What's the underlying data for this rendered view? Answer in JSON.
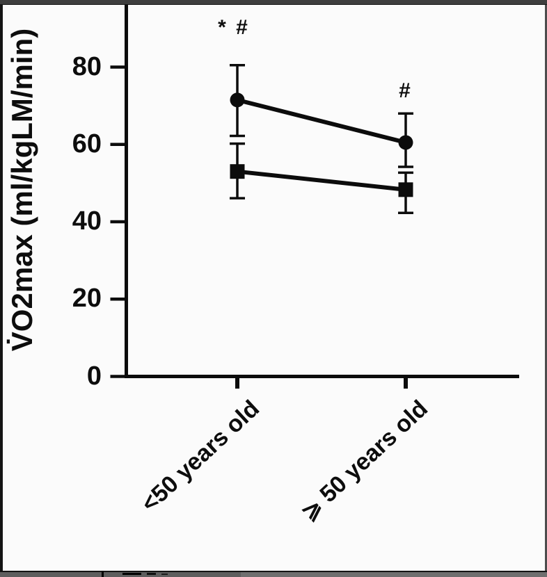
{
  "figure": {
    "kind": "scientific-plot-screenshot",
    "background_color": "#fbfbfb",
    "ink_color": "#0c0c0c",
    "frame_colors": {
      "top_bar": "#3e3e3e",
      "left_strip": "#141414",
      "right_strip": "#4c4c4c",
      "bottom_bar": "#6f6f6f"
    }
  },
  "chart_data": {
    "type": "line",
    "title": "",
    "xlabel": "",
    "ylabel": "V̇O2max (ml/kgLM/min)",
    "categories": [
      "<50 years old",
      "⩾ 50 years old"
    ],
    "y_axis": {
      "ticks": [
        0,
        20,
        40,
        60,
        80
      ],
      "visible_range": [
        0,
        96
      ]
    },
    "grid": false,
    "legend_position": "none",
    "series": [
      {
        "name": "circle-series",
        "marker": "circle",
        "color": "#0c0c0c",
        "values": [
          71.5,
          60.5
        ],
        "err_plus": [
          9.0,
          7.5
        ],
        "err_minus": [
          9.3,
          6.3
        ]
      },
      {
        "name": "square-series",
        "marker": "square",
        "color": "#0c0c0c",
        "values": [
          53.0,
          48.3
        ],
        "err_plus": [
          7.2,
          4.4
        ],
        "err_minus": [
          6.9,
          6.0
        ]
      }
    ],
    "annotations": [
      {
        "text": "* #",
        "category_index": 0,
        "value": 90.2,
        "dx": -5
      },
      {
        "text": "#",
        "category_index": 1,
        "value": 73.8,
        "dx": 0
      }
    ]
  }
}
